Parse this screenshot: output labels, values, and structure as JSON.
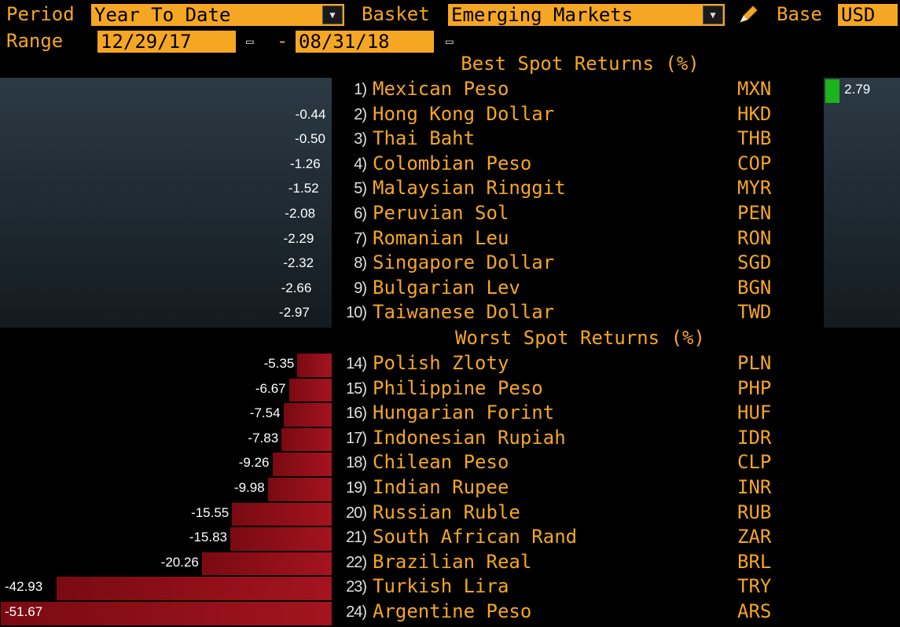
{
  "header": {
    "period_label": "Period",
    "period_value": "Year To Date",
    "basket_label": "Basket",
    "basket_value": "Emerging Markets",
    "base_label": "Base",
    "base_value": "USD",
    "range_label": "Range",
    "range_start": "12/29/17",
    "range_sep": "-",
    "range_end": "08/31/18",
    "pencil_icon": "pencil-icon",
    "dropdown_icon": "chevron-down-icon",
    "calendar_icon": "calendar-icon"
  },
  "best": {
    "title": "Best Spot Returns (%)",
    "rows": [
      {
        "num": "1)",
        "name": "Mexican Peso",
        "code": "MXN",
        "value": 2.79,
        "label": "2.79"
      },
      {
        "num": "2)",
        "name": "Hong Kong Dollar",
        "code": "HKD",
        "value": -0.44,
        "label": "-0.44"
      },
      {
        "num": "3)",
        "name": "Thai Baht",
        "code": "THB",
        "value": -0.5,
        "label": "-0.50"
      },
      {
        "num": "4)",
        "name": "Colombian Peso",
        "code": "COP",
        "value": -1.26,
        "label": "-1.26"
      },
      {
        "num": "5)",
        "name": "Malaysian Ringgit",
        "code": "MYR",
        "value": -1.52,
        "label": "-1.52"
      },
      {
        "num": "6)",
        "name": "Peruvian Sol",
        "code": "PEN",
        "value": -2.08,
        "label": "-2.08"
      },
      {
        "num": "7)",
        "name": "Romanian Leu",
        "code": "RON",
        "value": -2.29,
        "label": "-2.29"
      },
      {
        "num": "8)",
        "name": "Singapore Dollar",
        "code": "SGD",
        "value": -2.32,
        "label": "-2.32"
      },
      {
        "num": "9)",
        "name": "Bulgarian Lev",
        "code": "BGN",
        "value": -2.66,
        "label": "-2.66"
      },
      {
        "num": "10)",
        "name": "Taiwanese Dollar",
        "code": "TWD",
        "value": -2.97,
        "label": "-2.97"
      }
    ]
  },
  "worst": {
    "title": "Worst Spot Returns (%)",
    "rows": [
      {
        "num": "14)",
        "name": "Polish Zloty",
        "code": "PLN",
        "value": -5.35,
        "label": "-5.35"
      },
      {
        "num": "15)",
        "name": "Philippine Peso",
        "code": "PHP",
        "value": -6.67,
        "label": "-6.67"
      },
      {
        "num": "16)",
        "name": "Hungarian Forint",
        "code": "HUF",
        "value": -7.54,
        "label": "-7.54"
      },
      {
        "num": "17)",
        "name": "Indonesian Rupiah",
        "code": "IDR",
        "value": -7.83,
        "label": "-7.83"
      },
      {
        "num": "18)",
        "name": "Chilean Peso",
        "code": "CLP",
        "value": -9.26,
        "label": "-9.26"
      },
      {
        "num": "19)",
        "name": "Indian Rupee",
        "code": "INR",
        "value": -9.98,
        "label": "-9.98"
      },
      {
        "num": "20)",
        "name": "Russian Ruble",
        "code": "RUB",
        "value": -15.55,
        "label": "-15.55"
      },
      {
        "num": "21)",
        "name": "South African Rand",
        "code": "ZAR",
        "value": -15.83,
        "label": "-15.83"
      },
      {
        "num": "22)",
        "name": "Brazilian Real",
        "code": "BRL",
        "value": -20.26,
        "label": "-20.26"
      },
      {
        "num": "23)",
        "name": "Turkish Lira",
        "code": "TRY",
        "value": -42.93,
        "label": "-42.93"
      },
      {
        "num": "24)",
        "name": "Argentine Peso",
        "code": "ARS",
        "value": -51.67,
        "label": "-51.67"
      }
    ]
  },
  "colors": {
    "accent": "#f5a623",
    "negative_bar": "#a3141e",
    "positive_bar": "#1db31d"
  }
}
